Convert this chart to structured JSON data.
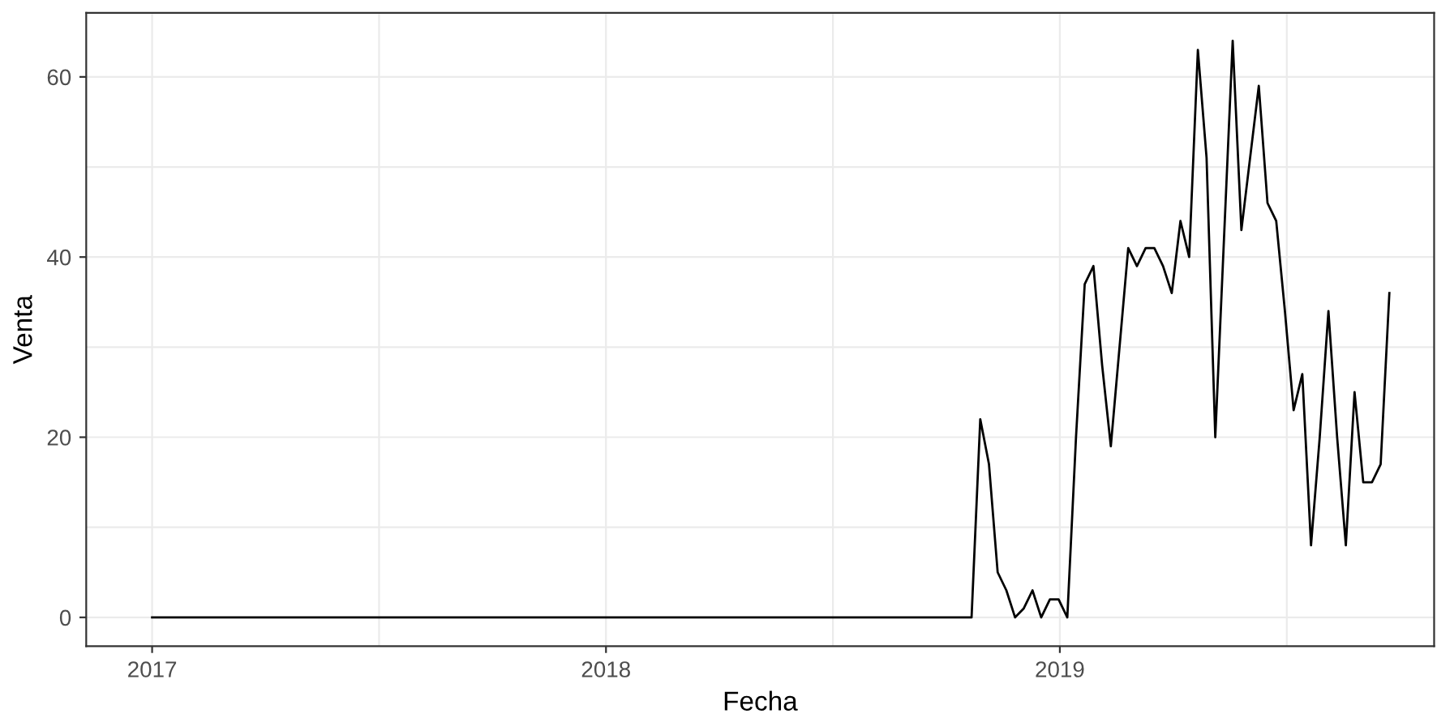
{
  "chart_data": {
    "type": "line",
    "xlabel": "Fecha",
    "ylabel": "Venta",
    "x": [
      "2017-01-01",
      "2018-10-22",
      "2018-10-29",
      "2018-11-05",
      "2018-11-12",
      "2018-11-19",
      "2018-11-26",
      "2018-12-03",
      "2018-12-10",
      "2018-12-17",
      "2018-12-24",
      "2018-12-31",
      "2019-01-07",
      "2019-01-14",
      "2019-01-21",
      "2019-01-28",
      "2019-02-04",
      "2019-02-11",
      "2019-02-18",
      "2019-02-25",
      "2019-03-04",
      "2019-03-11",
      "2019-03-18",
      "2019-03-25",
      "2019-04-01",
      "2019-04-08",
      "2019-04-15",
      "2019-04-22",
      "2019-04-29",
      "2019-05-06",
      "2019-05-13",
      "2019-05-20",
      "2019-05-27",
      "2019-06-03",
      "2019-06-10",
      "2019-06-17",
      "2019-06-24",
      "2019-07-01",
      "2019-07-08",
      "2019-07-15",
      "2019-07-22",
      "2019-07-29",
      "2019-08-05",
      "2019-08-12",
      "2019-08-19",
      "2019-08-26",
      "2019-09-02",
      "2019-09-09",
      "2019-09-16",
      "2019-09-23"
    ],
    "series": [
      {
        "color": "#000000",
        "values": [
          0,
          0,
          22,
          17,
          5,
          3,
          0,
          1,
          3,
          0,
          2,
          2,
          0,
          20,
          37,
          39,
          28,
          19,
          30,
          41,
          39,
          41,
          41,
          39,
          36,
          44,
          40,
          63,
          51,
          20,
          42,
          64,
          43,
          51,
          59,
          46,
          44,
          34,
          23,
          27,
          8,
          20,
          34,
          20,
          8,
          25,
          15,
          15,
          17,
          36
        ]
      }
    ],
    "xlim": [
      "2016-11-09",
      "2019-10-29"
    ],
    "xticks": [
      {
        "value": "2017-01-01",
        "label": "2017"
      },
      {
        "value": "2018-01-01",
        "label": "2018"
      },
      {
        "value": "2019-01-01",
        "label": "2019"
      }
    ],
    "ylim": [
      -3.2,
      67.1
    ],
    "yticks": [
      0,
      20,
      40,
      60
    ],
    "grid": true,
    "legend": false,
    "marker": "none",
    "line_style": "solid"
  }
}
